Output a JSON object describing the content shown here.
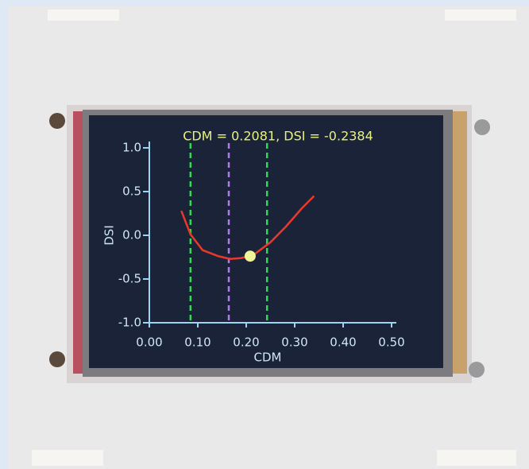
{
  "chart_data": {
    "type": "line",
    "title": "CDM = 0.2081, DSI = -0.2384",
    "x_label": "CDM",
    "y_label": "DSI",
    "x": [
      0.066,
      0.085,
      0.11,
      0.143,
      0.167,
      0.19,
      0.216,
      0.25,
      0.282,
      0.315,
      0.34
    ],
    "values": [
      0.28,
      0.01,
      -0.17,
      -0.24,
      -0.27,
      -0.26,
      -0.22,
      -0.08,
      0.1,
      0.31,
      0.45
    ],
    "color": "#e8392c",
    "vlines": [
      {
        "x": 0.085,
        "color": "#35d45a"
      },
      {
        "x": 0.164,
        "color": "#b27ae8"
      },
      {
        "x": 0.243,
        "color": "#35d45a"
      }
    ],
    "point": {
      "x": 0.2081,
      "y": -0.2384,
      "color": "#f2f49a"
    },
    "xlim": [
      0,
      0.5
    ],
    "xticks": [
      {
        "value": 0,
        "label": "0.00"
      },
      {
        "value": 0.1,
        "label": "0.10"
      },
      {
        "value": 0.2,
        "label": "0.20"
      },
      {
        "value": 0.3,
        "label": "0.30"
      },
      {
        "value": 0.4,
        "label": "0.40"
      },
      {
        "value": 0.5,
        "label": "0.50"
      }
    ],
    "ylim": [
      -1,
      1
    ],
    "yticks": [
      {
        "value": -1,
        "label": "-1.0"
      },
      {
        "value": -0.5,
        "label": "-0.5"
      },
      {
        "value": 0,
        "label": "0.0"
      },
      {
        "value": 0.5,
        "label": "0.5"
      },
      {
        "value": 1,
        "label": "1.0"
      }
    ]
  }
}
